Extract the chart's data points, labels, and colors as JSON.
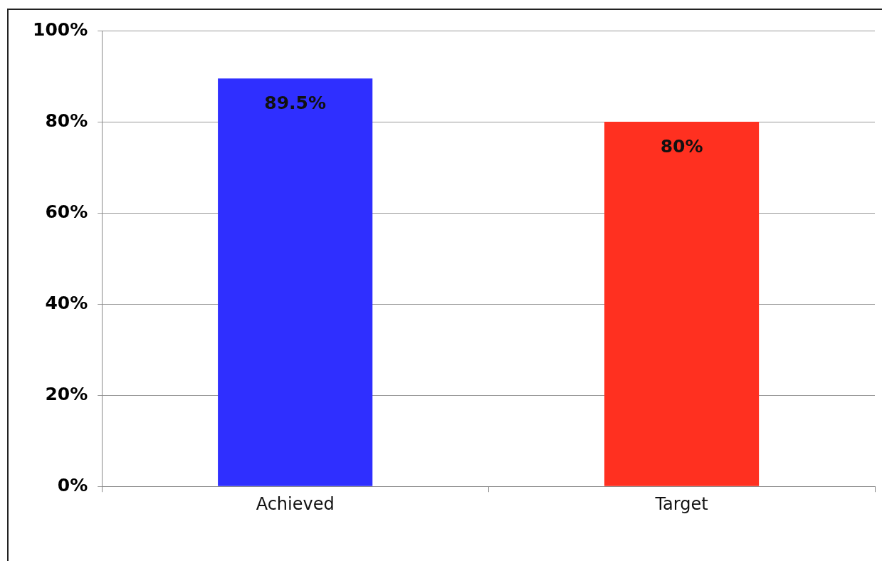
{
  "chart_data": {
    "type": "bar",
    "categories": [
      "Achieved",
      "Target"
    ],
    "values": [
      89.5,
      80
    ],
    "colors": [
      "#2f2fff",
      "#ff3020"
    ],
    "value_labels": [
      "89.5%",
      "80%"
    ],
    "ylim": [
      0,
      100
    ],
    "yticks": [
      {
        "value": 0,
        "label": "0%"
      },
      {
        "value": 20,
        "label": "20%"
      },
      {
        "value": 40,
        "label": "40%"
      },
      {
        "value": 60,
        "label": "60%"
      },
      {
        "value": 80,
        "label": "80%"
      },
      {
        "value": 100,
        "label": "100%"
      }
    ],
    "grid": "y",
    "legend": false
  }
}
